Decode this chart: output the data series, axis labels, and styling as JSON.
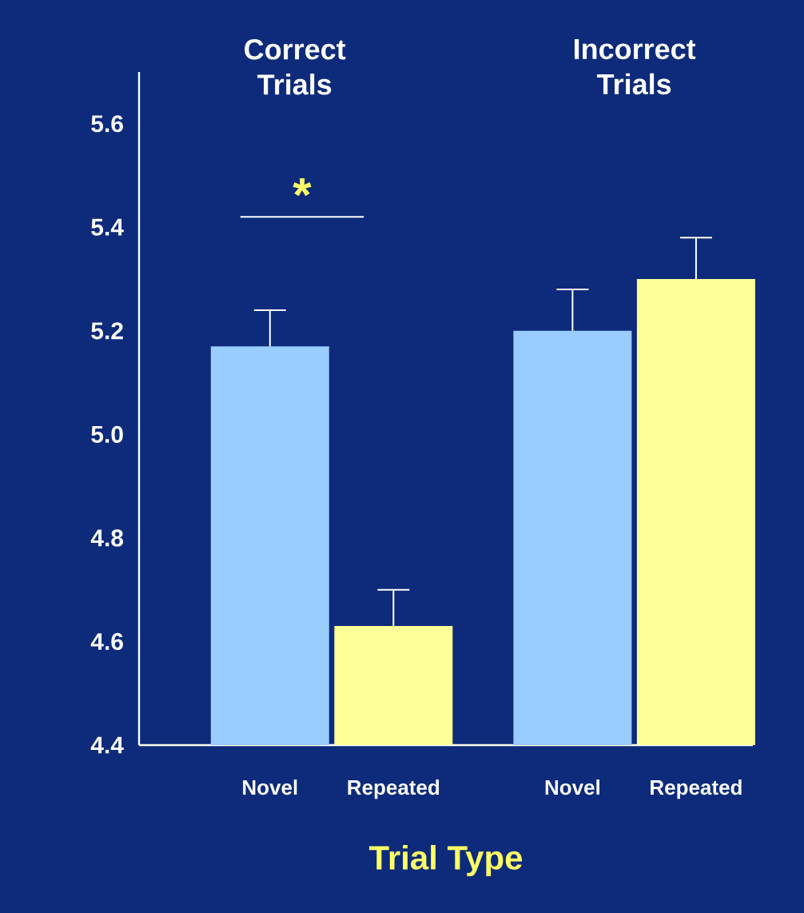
{
  "chart_data": {
    "type": "bar",
    "xlabel": "Trial Type",
    "categories": [
      "Novel",
      "Repeated",
      "Novel",
      "Repeated"
    ],
    "values": [
      5.17,
      4.63,
      5.2,
      5.3
    ],
    "errors": [
      0.07,
      0.07,
      0.08,
      0.08
    ],
    "colors": [
      "#99ccff",
      "#ffff99",
      "#99ccff",
      "#ffff99"
    ],
    "ylim": [
      4.4,
      5.7
    ],
    "yticks": [
      {
        "value": 4.4,
        "label": "4.4"
      },
      {
        "value": 4.6,
        "label": "4.6"
      },
      {
        "value": 4.8,
        "label": "4.8"
      },
      {
        "value": 5.0,
        "label": "5.0"
      },
      {
        "value": 5.2,
        "label": "5.2"
      },
      {
        "value": 5.4,
        "label": "5.4"
      },
      {
        "value": 5.6,
        "label": "5.6"
      }
    ],
    "annotations": [
      "Correct Trials",
      "Incorrect Trials",
      "*"
    ]
  }
}
